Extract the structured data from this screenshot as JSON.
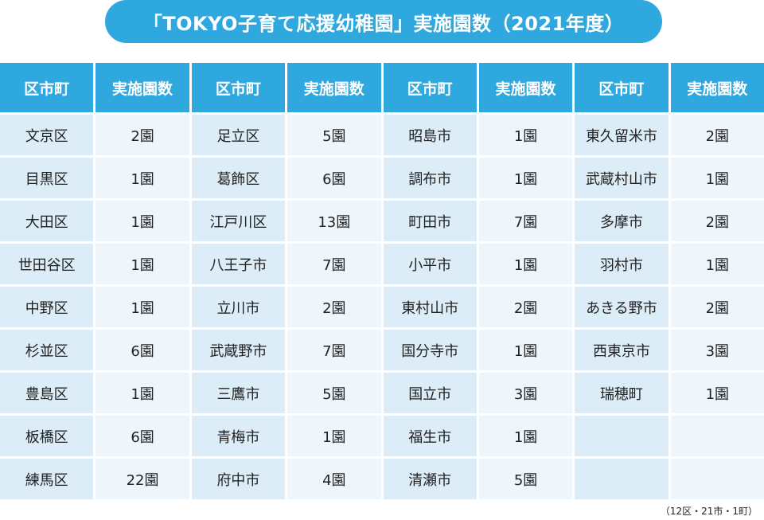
{
  "title": "「TOKYO子育て応援幼稚園」実施園数（2021年度）",
  "headers": [
    "区市町",
    "実施園数",
    "区市町",
    "実施園数",
    "区市町",
    "実施園数",
    "区市町",
    "実施園数"
  ],
  "rows": [
    [
      "文京区",
      "2園",
      "足立区",
      "5園",
      "昭島市",
      "1園",
      "東久留米市",
      "2園"
    ],
    [
      "目黒区",
      "1園",
      "葛飾区",
      "6園",
      "調布市",
      "1園",
      "武蔵村山市",
      "1園"
    ],
    [
      "大田区",
      "1園",
      "江戸川区",
      "13園",
      "町田市",
      "7園",
      "多摩市",
      "2園"
    ],
    [
      "世田谷区",
      "1園",
      "八王子市",
      "7園",
      "小平市",
      "1園",
      "羽村市",
      "1園"
    ],
    [
      "中野区",
      "1園",
      "立川市",
      "2園",
      "東村山市",
      "2園",
      "あきる野市",
      "2園"
    ],
    [
      "杉並区",
      "6園",
      "武蔵野市",
      "7園",
      "国分寺市",
      "1園",
      "西東京市",
      "3園"
    ],
    [
      "豊島区",
      "1園",
      "三鷹市",
      "5園",
      "国立市",
      "3園",
      "瑞穂町",
      "1園"
    ],
    [
      "板橋区",
      "6園",
      "青梅市",
      "1園",
      "福生市",
      "1園",
      "",
      ""
    ],
    [
      "練馬区",
      "22園",
      "府中市",
      "4園",
      "清瀬市",
      "5園",
      "",
      ""
    ]
  ],
  "footnote": "（12区・21市・1町）",
  "colors": {
    "header": "#2fa8e0",
    "name_cell": "#dcedf8",
    "count_cell": "#eef6fc"
  }
}
